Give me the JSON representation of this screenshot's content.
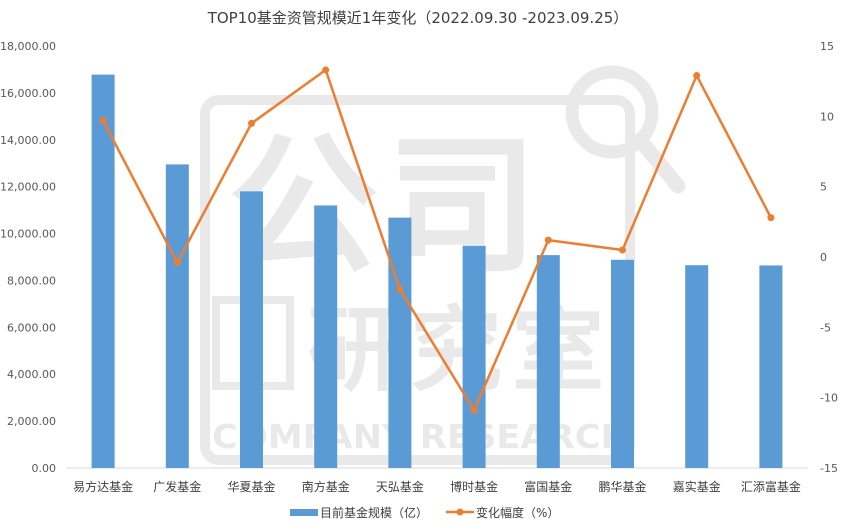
{
  "chart_data": {
    "type": "bar",
    "title": "TOP10基金资管规模近1年变化（2022.09.30 -2023.09.25）",
    "categories": [
      "易方达基金",
      "广发基金",
      "华夏基金",
      "南方基金",
      "天弘基金",
      "博时基金",
      "富国基金",
      "鹏华基金",
      "嘉实基金",
      "汇添富基金"
    ],
    "series": [
      {
        "name": "目前基金规模（亿）",
        "type": "bar",
        "axis": "left",
        "color": "#5b9bd5",
        "values": [
          16780,
          12950,
          11800,
          11200,
          10680,
          9480,
          9080,
          8880,
          8650,
          8640
        ]
      },
      {
        "name": "变化幅度（%）",
        "type": "line",
        "axis": "right",
        "color": "#ed7d31",
        "values": [
          9.7,
          -0.4,
          9.5,
          13.3,
          -2.3,
          -10.9,
          1.2,
          0.5,
          12.9,
          2.8
        ]
      }
    ],
    "y_left": {
      "lim": [
        0,
        18000
      ],
      "ticks": [
        0,
        2000,
        4000,
        6000,
        8000,
        10000,
        12000,
        14000,
        16000,
        18000
      ],
      "tick_labels": [
        "0.00",
        "2,000.00",
        "4,000.00",
        "6,000.00",
        "8,000.00",
        "10,000.00",
        "12,000.00",
        "14,000.00",
        "16,000.00",
        "18,000.00"
      ]
    },
    "y_right": {
      "lim": [
        -15,
        15
      ],
      "ticks": [
        -15,
        -10,
        -5,
        0,
        5,
        10,
        15
      ],
      "tick_labels": [
        "-15",
        "-10",
        "-5",
        "0",
        "5",
        "10",
        "15"
      ]
    },
    "grid": false,
    "legend": "bottom"
  },
  "watermark": {
    "chars": [
      "公",
      "司",
      "研",
      "究",
      "室"
    ],
    "text": "COMPANY RESEARCH"
  }
}
